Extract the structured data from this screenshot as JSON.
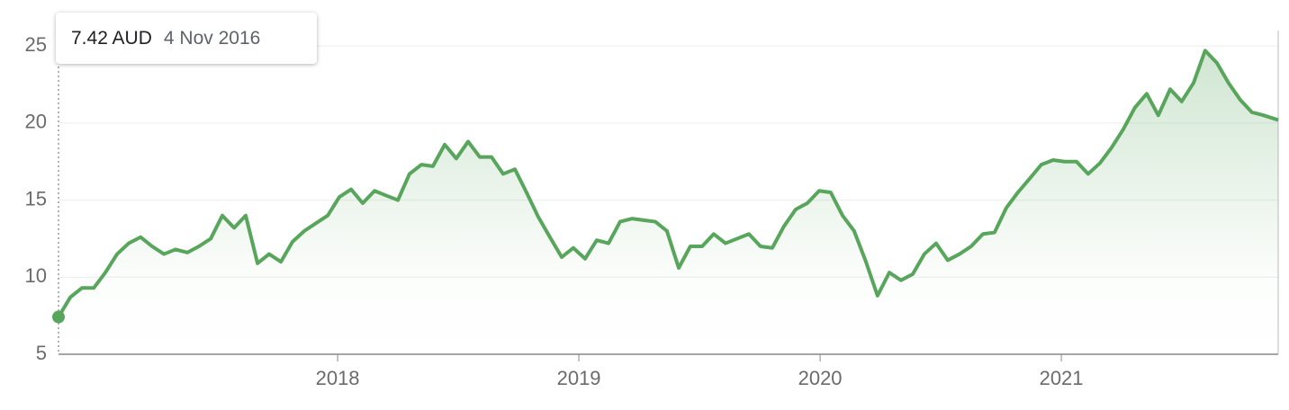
{
  "chart_data": {
    "type": "area",
    "tooltip": {
      "price": "7.42 AUD",
      "date": "4 Nov 2016"
    },
    "x": [
      2016.843,
      2016.892,
      2016.94,
      2016.989,
      2017.037,
      2017.086,
      2017.134,
      2017.183,
      2017.231,
      2017.28,
      2017.328,
      2017.377,
      2017.425,
      2017.474,
      2017.522,
      2017.571,
      2017.619,
      2017.668,
      2017.716,
      2017.765,
      2017.813,
      2017.862,
      2017.91,
      2017.959,
      2018.007,
      2018.056,
      2018.104,
      2018.153,
      2018.201,
      2018.25,
      2018.298,
      2018.347,
      2018.395,
      2018.444,
      2018.492,
      2018.541,
      2018.589,
      2018.638,
      2018.686,
      2018.735,
      2018.783,
      2018.832,
      2018.88,
      2018.929,
      2018.977,
      2019.026,
      2019.074,
      2019.123,
      2019.171,
      2019.22,
      2019.268,
      2019.317,
      2019.365,
      2019.414,
      2019.462,
      2019.511,
      2019.559,
      2019.608,
      2019.656,
      2019.705,
      2019.753,
      2019.802,
      2019.85,
      2019.899,
      2019.947,
      2019.996,
      2020.044,
      2020.093,
      2020.141,
      2020.19,
      2020.238,
      2020.287,
      2020.335,
      2020.384,
      2020.432,
      2020.481,
      2020.529,
      2020.578,
      2020.626,
      2020.675,
      2020.723,
      2020.772,
      2020.82,
      2020.869,
      2020.917,
      2020.966,
      2021.014,
      2021.063,
      2021.111,
      2021.16,
      2021.208,
      2021.257,
      2021.305,
      2021.354,
      2021.402,
      2021.451,
      2021.499,
      2021.548,
      2021.596,
      2021.645,
      2021.693,
      2021.742,
      2021.79,
      2021.839,
      2021.899
    ],
    "series": [
      {
        "color": "#58a55c",
        "values": [
          7.42,
          8.7,
          9.3,
          9.3,
          10.3,
          11.5,
          12.2,
          12.6,
          12.0,
          11.5,
          11.8,
          11.6,
          12.0,
          12.5,
          14.0,
          13.2,
          14.0,
          10.9,
          11.5,
          11.0,
          12.3,
          13.0,
          13.5,
          14.0,
          15.2,
          15.7,
          14.8,
          15.6,
          15.3,
          15.0,
          16.7,
          17.3,
          17.2,
          18.6,
          17.7,
          18.8,
          17.8,
          17.8,
          16.7,
          17.0,
          15.5,
          13.9,
          12.6,
          11.3,
          11.9,
          11.2,
          12.4,
          12.2,
          13.6,
          13.8,
          13.7,
          13.6,
          13.0,
          10.6,
          12.0,
          12.0,
          12.8,
          12.2,
          12.5,
          12.8,
          12.0,
          11.9,
          13.3,
          14.4,
          14.8,
          15.6,
          15.5,
          14.0,
          13.0,
          11.0,
          8.8,
          10.3,
          9.8,
          10.2,
          11.5,
          12.2,
          11.1,
          11.5,
          12.0,
          12.8,
          12.9,
          14.5,
          15.5,
          16.4,
          17.3,
          17.6,
          17.5,
          17.5,
          16.7,
          17.4,
          18.4,
          19.6,
          21.0,
          21.9,
          20.5,
          22.2,
          21.4,
          22.6,
          24.7,
          23.9,
          22.6,
          21.5,
          20.7,
          20.5,
          20.2
        ]
      }
    ],
    "xlim": [
      2016.843,
      2021.899
    ],
    "xticks": [
      2018,
      2019,
      2020,
      2021
    ],
    "ylim": [
      5,
      26
    ],
    "yticks": [
      5,
      10,
      15,
      20,
      25
    ],
    "grid": true
  }
}
